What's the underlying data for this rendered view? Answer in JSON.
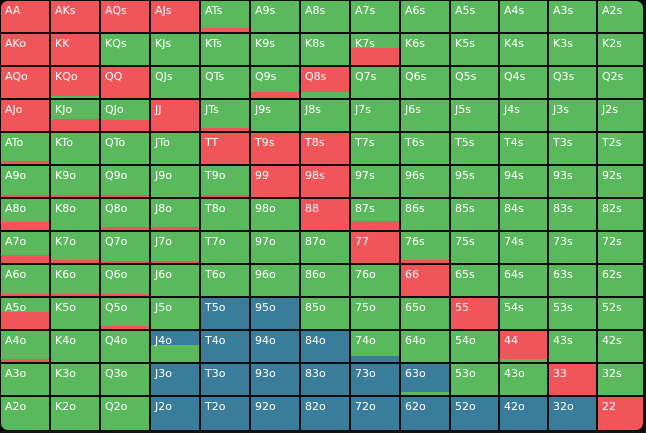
{
  "colors": {
    "fold": "#5ab95c",
    "raise": "#f0555a",
    "call": "#3a7d9a",
    "border": "#0d0d0d"
  },
  "ranks": [
    "A",
    "K",
    "Q",
    "J",
    "T",
    "9",
    "8",
    "7",
    "6",
    "5",
    "4",
    "3",
    "2"
  ],
  "hands": [
    [
      {
        "label": "AA",
        "base": "raise",
        "bar": null,
        "frac": 0
      },
      {
        "label": "AKs",
        "base": "raise",
        "bar": null,
        "frac": 0
      },
      {
        "label": "AQs",
        "base": "raise",
        "bar": null,
        "frac": 0
      },
      {
        "label": "AJs",
        "base": "raise",
        "bar": null,
        "frac": 0
      },
      {
        "label": "ATs",
        "base": "fold",
        "bar": "raise",
        "frac": 0.12
      },
      {
        "label": "A9s",
        "base": "fold",
        "bar": null,
        "frac": 0
      },
      {
        "label": "A8s",
        "base": "fold",
        "bar": null,
        "frac": 0
      },
      {
        "label": "A7s",
        "base": "fold",
        "bar": null,
        "frac": 0
      },
      {
        "label": "A6s",
        "base": "fold",
        "bar": null,
        "frac": 0
      },
      {
        "label": "A5s",
        "base": "fold",
        "bar": null,
        "frac": 0
      },
      {
        "label": "A4s",
        "base": "fold",
        "bar": null,
        "frac": 0
      },
      {
        "label": "A3s",
        "base": "fold",
        "bar": null,
        "frac": 0
      },
      {
        "label": "A2s",
        "base": "fold",
        "bar": null,
        "frac": 0
      }
    ],
    [
      {
        "label": "AKo",
        "base": "raise",
        "bar": null,
        "frac": 0
      },
      {
        "label": "KK",
        "base": "raise",
        "bar": null,
        "frac": 0
      },
      {
        "label": "KQs",
        "base": "fold",
        "bar": null,
        "frac": 0
      },
      {
        "label": "KJs",
        "base": "fold",
        "bar": null,
        "frac": 0
      },
      {
        "label": "KTs",
        "base": "fold",
        "bar": null,
        "frac": 0
      },
      {
        "label": "K9s",
        "base": "fold",
        "bar": null,
        "frac": 0
      },
      {
        "label": "K8s",
        "base": "fold",
        "bar": null,
        "frac": 0
      },
      {
        "label": "K7s",
        "base": "fold",
        "bar": "raise",
        "frac": 0.55
      },
      {
        "label": "K6s",
        "base": "fold",
        "bar": null,
        "frac": 0
      },
      {
        "label": "K5s",
        "base": "fold",
        "bar": null,
        "frac": 0
      },
      {
        "label": "K4s",
        "base": "fold",
        "bar": null,
        "frac": 0
      },
      {
        "label": "K3s",
        "base": "fold",
        "bar": null,
        "frac": 0
      },
      {
        "label": "K2s",
        "base": "fold",
        "bar": null,
        "frac": 0
      }
    ],
    [
      {
        "label": "AQo",
        "base": "raise",
        "bar": null,
        "frac": 0
      },
      {
        "label": "KQo",
        "base": "raise",
        "bar": "fold",
        "frac": 0.05
      },
      {
        "label": "QQ",
        "base": "raise",
        "bar": null,
        "frac": 0
      },
      {
        "label": "QJs",
        "base": "fold",
        "bar": null,
        "frac": 0
      },
      {
        "label": "QTs",
        "base": "fold",
        "bar": null,
        "frac": 0
      },
      {
        "label": "Q9s",
        "base": "fold",
        "bar": "raise",
        "frac": 0.2
      },
      {
        "label": "Q8s",
        "base": "raise",
        "bar": "fold",
        "frac": 0.2
      },
      {
        "label": "Q7s",
        "base": "fold",
        "bar": null,
        "frac": 0
      },
      {
        "label": "Q6s",
        "base": "fold",
        "bar": null,
        "frac": 0
      },
      {
        "label": "Q5s",
        "base": "fold",
        "bar": null,
        "frac": 0
      },
      {
        "label": "Q4s",
        "base": "fold",
        "bar": null,
        "frac": 0
      },
      {
        "label": "Q3s",
        "base": "fold",
        "bar": null,
        "frac": 0
      },
      {
        "label": "Q2s",
        "base": "fold",
        "bar": null,
        "frac": 0
      }
    ],
    [
      {
        "label": "AJo",
        "base": "raise",
        "bar": null,
        "frac": 0
      },
      {
        "label": "KJo",
        "base": "fold",
        "bar": "raise",
        "frac": 0.4
      },
      {
        "label": "QJo",
        "base": "fold",
        "bar": "raise",
        "frac": 0.35
      },
      {
        "label": "JJ",
        "base": "raise",
        "bar": null,
        "frac": 0
      },
      {
        "label": "JTs",
        "base": "fold",
        "bar": "raise",
        "frac": 0.1
      },
      {
        "label": "J9s",
        "base": "fold",
        "bar": null,
        "frac": 0
      },
      {
        "label": "J8s",
        "base": "fold",
        "bar": null,
        "frac": 0
      },
      {
        "label": "J7s",
        "base": "fold",
        "bar": null,
        "frac": 0
      },
      {
        "label": "J6s",
        "base": "fold",
        "bar": null,
        "frac": 0
      },
      {
        "label": "J5s",
        "base": "fold",
        "bar": null,
        "frac": 0
      },
      {
        "label": "J4s",
        "base": "fold",
        "bar": null,
        "frac": 0
      },
      {
        "label": "J3s",
        "base": "fold",
        "bar": null,
        "frac": 0
      },
      {
        "label": "J2s",
        "base": "fold",
        "bar": null,
        "frac": 0
      }
    ],
    [
      {
        "label": "ATo",
        "base": "fold",
        "bar": "raise",
        "frac": 0.1
      },
      {
        "label": "KTo",
        "base": "fold",
        "bar": null,
        "frac": 0
      },
      {
        "label": "QTo",
        "base": "fold",
        "bar": null,
        "frac": 0
      },
      {
        "label": "JTo",
        "base": "fold",
        "bar": null,
        "frac": 0
      },
      {
        "label": "TT",
        "base": "raise",
        "bar": null,
        "frac": 0
      },
      {
        "label": "T9s",
        "base": "raise",
        "bar": null,
        "frac": 0
      },
      {
        "label": "T8s",
        "base": "raise",
        "bar": null,
        "frac": 0
      },
      {
        "label": "T7s",
        "base": "fold",
        "bar": null,
        "frac": 0
      },
      {
        "label": "T6s",
        "base": "fold",
        "bar": null,
        "frac": 0
      },
      {
        "label": "T5s",
        "base": "fold",
        "bar": null,
        "frac": 0
      },
      {
        "label": "T4s",
        "base": "fold",
        "bar": null,
        "frac": 0
      },
      {
        "label": "T3s",
        "base": "fold",
        "bar": null,
        "frac": 0
      },
      {
        "label": "T2s",
        "base": "fold",
        "bar": null,
        "frac": 0
      }
    ],
    [
      {
        "label": "A9o",
        "base": "fold",
        "bar": "raise",
        "frac": 0.08
      },
      {
        "label": "K9o",
        "base": "fold",
        "bar": "raise",
        "frac": 0.08
      },
      {
        "label": "Q9o",
        "base": "fold",
        "bar": "raise",
        "frac": 0.08
      },
      {
        "label": "J9o",
        "base": "fold",
        "bar": null,
        "frac": 0
      },
      {
        "label": "T9o",
        "base": "fold",
        "bar": "raise",
        "frac": 0.08
      },
      {
        "label": "99",
        "base": "raise",
        "bar": null,
        "frac": 0
      },
      {
        "label": "98s",
        "base": "raise",
        "bar": null,
        "frac": 0
      },
      {
        "label": "97s",
        "base": "fold",
        "bar": null,
        "frac": 0
      },
      {
        "label": "96s",
        "base": "fold",
        "bar": null,
        "frac": 0
      },
      {
        "label": "95s",
        "base": "fold",
        "bar": null,
        "frac": 0
      },
      {
        "label": "94s",
        "base": "fold",
        "bar": null,
        "frac": 0
      },
      {
        "label": "93s",
        "base": "fold",
        "bar": null,
        "frac": 0
      },
      {
        "label": "92s",
        "base": "fold",
        "bar": null,
        "frac": 0
      }
    ],
    [
      {
        "label": "A8o",
        "base": "fold",
        "bar": "raise",
        "frac": 0.25
      },
      {
        "label": "K8o",
        "base": "fold",
        "bar": null,
        "frac": 0
      },
      {
        "label": "Q8o",
        "base": "fold",
        "bar": "raise",
        "frac": 0.1
      },
      {
        "label": "J8o",
        "base": "fold",
        "bar": "raise",
        "frac": 0.1
      },
      {
        "label": "T8o",
        "base": "fold",
        "bar": null,
        "frac": 0
      },
      {
        "label": "98o",
        "base": "fold",
        "bar": null,
        "frac": 0
      },
      {
        "label": "88",
        "base": "raise",
        "bar": null,
        "frac": 0
      },
      {
        "label": "87s",
        "base": "fold",
        "bar": "raise",
        "frac": 0.3
      },
      {
        "label": "86s",
        "base": "fold",
        "bar": null,
        "frac": 0
      },
      {
        "label": "85s",
        "base": "fold",
        "bar": null,
        "frac": 0
      },
      {
        "label": "84s",
        "base": "fold",
        "bar": null,
        "frac": 0
      },
      {
        "label": "83s",
        "base": "fold",
        "bar": null,
        "frac": 0
      },
      {
        "label": "82s",
        "base": "fold",
        "bar": null,
        "frac": 0
      }
    ],
    [
      {
        "label": "A7o",
        "base": "fold",
        "bar": "raise",
        "frac": 0.25
      },
      {
        "label": "K7o",
        "base": "fold",
        "bar": "raise",
        "frac": 0.1
      },
      {
        "label": "Q7o",
        "base": "fold",
        "bar": "raise",
        "frac": 0.08
      },
      {
        "label": "J7o",
        "base": "fold",
        "bar": "raise",
        "frac": 0.08
      },
      {
        "label": "T7o",
        "base": "fold",
        "bar": null,
        "frac": 0
      },
      {
        "label": "97o",
        "base": "fold",
        "bar": null,
        "frac": 0
      },
      {
        "label": "87o",
        "base": "fold",
        "bar": null,
        "frac": 0
      },
      {
        "label": "77",
        "base": "raise",
        "bar": null,
        "frac": 0
      },
      {
        "label": "76s",
        "base": "fold",
        "bar": "raise",
        "frac": 0.1
      },
      {
        "label": "75s",
        "base": "fold",
        "bar": null,
        "frac": 0
      },
      {
        "label": "74s",
        "base": "fold",
        "bar": null,
        "frac": 0
      },
      {
        "label": "73s",
        "base": "fold",
        "bar": null,
        "frac": 0
      },
      {
        "label": "72s",
        "base": "fold",
        "bar": null,
        "frac": 0
      }
    ],
    [
      {
        "label": "A6o",
        "base": "fold",
        "bar": "raise",
        "frac": 0.08
      },
      {
        "label": "K6o",
        "base": "fold",
        "bar": "raise",
        "frac": 0.06
      },
      {
        "label": "Q6o",
        "base": "fold",
        "bar": "raise",
        "frac": 0.08
      },
      {
        "label": "J6o",
        "base": "fold",
        "bar": null,
        "frac": 0
      },
      {
        "label": "T6o",
        "base": "fold",
        "bar": null,
        "frac": 0
      },
      {
        "label": "96o",
        "base": "fold",
        "bar": null,
        "frac": 0
      },
      {
        "label": "86o",
        "base": "fold",
        "bar": null,
        "frac": 0
      },
      {
        "label": "76o",
        "base": "fold",
        "bar": null,
        "frac": 0
      },
      {
        "label": "66",
        "base": "raise",
        "bar": null,
        "frac": 0
      },
      {
        "label": "65s",
        "base": "fold",
        "bar": null,
        "frac": 0
      },
      {
        "label": "64s",
        "base": "fold",
        "bar": null,
        "frac": 0
      },
      {
        "label": "63s",
        "base": "fold",
        "bar": null,
        "frac": 0
      },
      {
        "label": "62s",
        "base": "fold",
        "bar": null,
        "frac": 0
      }
    ],
    [
      {
        "label": "A5o",
        "base": "fold",
        "bar": "raise",
        "frac": 0.55
      },
      {
        "label": "K5o",
        "base": "fold",
        "bar": null,
        "frac": 0
      },
      {
        "label": "Q5o",
        "base": "fold",
        "bar": "raise",
        "frac": 0.1
      },
      {
        "label": "J5o",
        "base": "fold",
        "bar": null,
        "frac": 0
      },
      {
        "label": "T5o",
        "base": "call",
        "bar": null,
        "frac": 0
      },
      {
        "label": "95o",
        "base": "call",
        "bar": null,
        "frac": 0
      },
      {
        "label": "85o",
        "base": "fold",
        "bar": null,
        "frac": 0
      },
      {
        "label": "75o",
        "base": "fold",
        "bar": null,
        "frac": 0
      },
      {
        "label": "65o",
        "base": "fold",
        "bar": null,
        "frac": 0
      },
      {
        "label": "55",
        "base": "raise",
        "bar": null,
        "frac": 0
      },
      {
        "label": "54s",
        "base": "fold",
        "bar": null,
        "frac": 0
      },
      {
        "label": "53s",
        "base": "fold",
        "bar": null,
        "frac": 0
      },
      {
        "label": "52s",
        "base": "fold",
        "bar": null,
        "frac": 0
      }
    ],
    [
      {
        "label": "A4o",
        "base": "fold",
        "bar": "raise",
        "frac": 0.1
      },
      {
        "label": "K4o",
        "base": "fold",
        "bar": null,
        "frac": 0
      },
      {
        "label": "Q4o",
        "base": "fold",
        "bar": null,
        "frac": 0
      },
      {
        "label": "J4o",
        "base": "call",
        "bar": "fold",
        "frac": 0.55
      },
      {
        "label": "T4o",
        "base": "call",
        "bar": null,
        "frac": 0
      },
      {
        "label": "94o",
        "base": "call",
        "bar": null,
        "frac": 0
      },
      {
        "label": "84o",
        "base": "call",
        "bar": null,
        "frac": 0
      },
      {
        "label": "74o",
        "base": "fold",
        "bar": "call",
        "frac": 0.2
      },
      {
        "label": "64o",
        "base": "fold",
        "bar": null,
        "frac": 0
      },
      {
        "label": "54o",
        "base": "fold",
        "bar": null,
        "frac": 0
      },
      {
        "label": "44",
        "base": "raise",
        "bar": "fold",
        "frac": 0.1
      },
      {
        "label": "43s",
        "base": "fold",
        "bar": null,
        "frac": 0
      },
      {
        "label": "42s",
        "base": "fold",
        "bar": null,
        "frac": 0
      }
    ],
    [
      {
        "label": "A3o",
        "base": "fold",
        "bar": null,
        "frac": 0
      },
      {
        "label": "K3o",
        "base": "fold",
        "bar": null,
        "frac": 0
      },
      {
        "label": "Q3o",
        "base": "fold",
        "bar": null,
        "frac": 0
      },
      {
        "label": "J3o",
        "base": "call",
        "bar": null,
        "frac": 0
      },
      {
        "label": "T3o",
        "base": "call",
        "bar": null,
        "frac": 0
      },
      {
        "label": "93o",
        "base": "call",
        "bar": null,
        "frac": 0
      },
      {
        "label": "83o",
        "base": "call",
        "bar": null,
        "frac": 0
      },
      {
        "label": "73o",
        "base": "call",
        "bar": null,
        "frac": 0
      },
      {
        "label": "63o",
        "base": "call",
        "bar": "fold",
        "frac": 0.1
      },
      {
        "label": "53o",
        "base": "fold",
        "bar": null,
        "frac": 0
      },
      {
        "label": "43o",
        "base": "fold",
        "bar": null,
        "frac": 0
      },
      {
        "label": "33",
        "base": "raise",
        "bar": null,
        "frac": 0
      },
      {
        "label": "32s",
        "base": "fold",
        "bar": null,
        "frac": 0
      }
    ],
    [
      {
        "label": "A2o",
        "base": "fold",
        "bar": null,
        "frac": 0
      },
      {
        "label": "K2o",
        "base": "fold",
        "bar": null,
        "frac": 0
      },
      {
        "label": "Q2o",
        "base": "fold",
        "bar": null,
        "frac": 0
      },
      {
        "label": "J2o",
        "base": "call",
        "bar": null,
        "frac": 0
      },
      {
        "label": "T2o",
        "base": "call",
        "bar": null,
        "frac": 0
      },
      {
        "label": "92o",
        "base": "call",
        "bar": null,
        "frac": 0
      },
      {
        "label": "82o",
        "base": "call",
        "bar": null,
        "frac": 0
      },
      {
        "label": "72o",
        "base": "call",
        "bar": null,
        "frac": 0
      },
      {
        "label": "62o",
        "base": "call",
        "bar": null,
        "frac": 0
      },
      {
        "label": "52o",
        "base": "call",
        "bar": null,
        "frac": 0
      },
      {
        "label": "42o",
        "base": "call",
        "bar": null,
        "frac": 0
      },
      {
        "label": "32o",
        "base": "call",
        "bar": null,
        "frac": 0
      },
      {
        "label": "22",
        "base": "raise",
        "bar": null,
        "frac": 0
      }
    ]
  ]
}
